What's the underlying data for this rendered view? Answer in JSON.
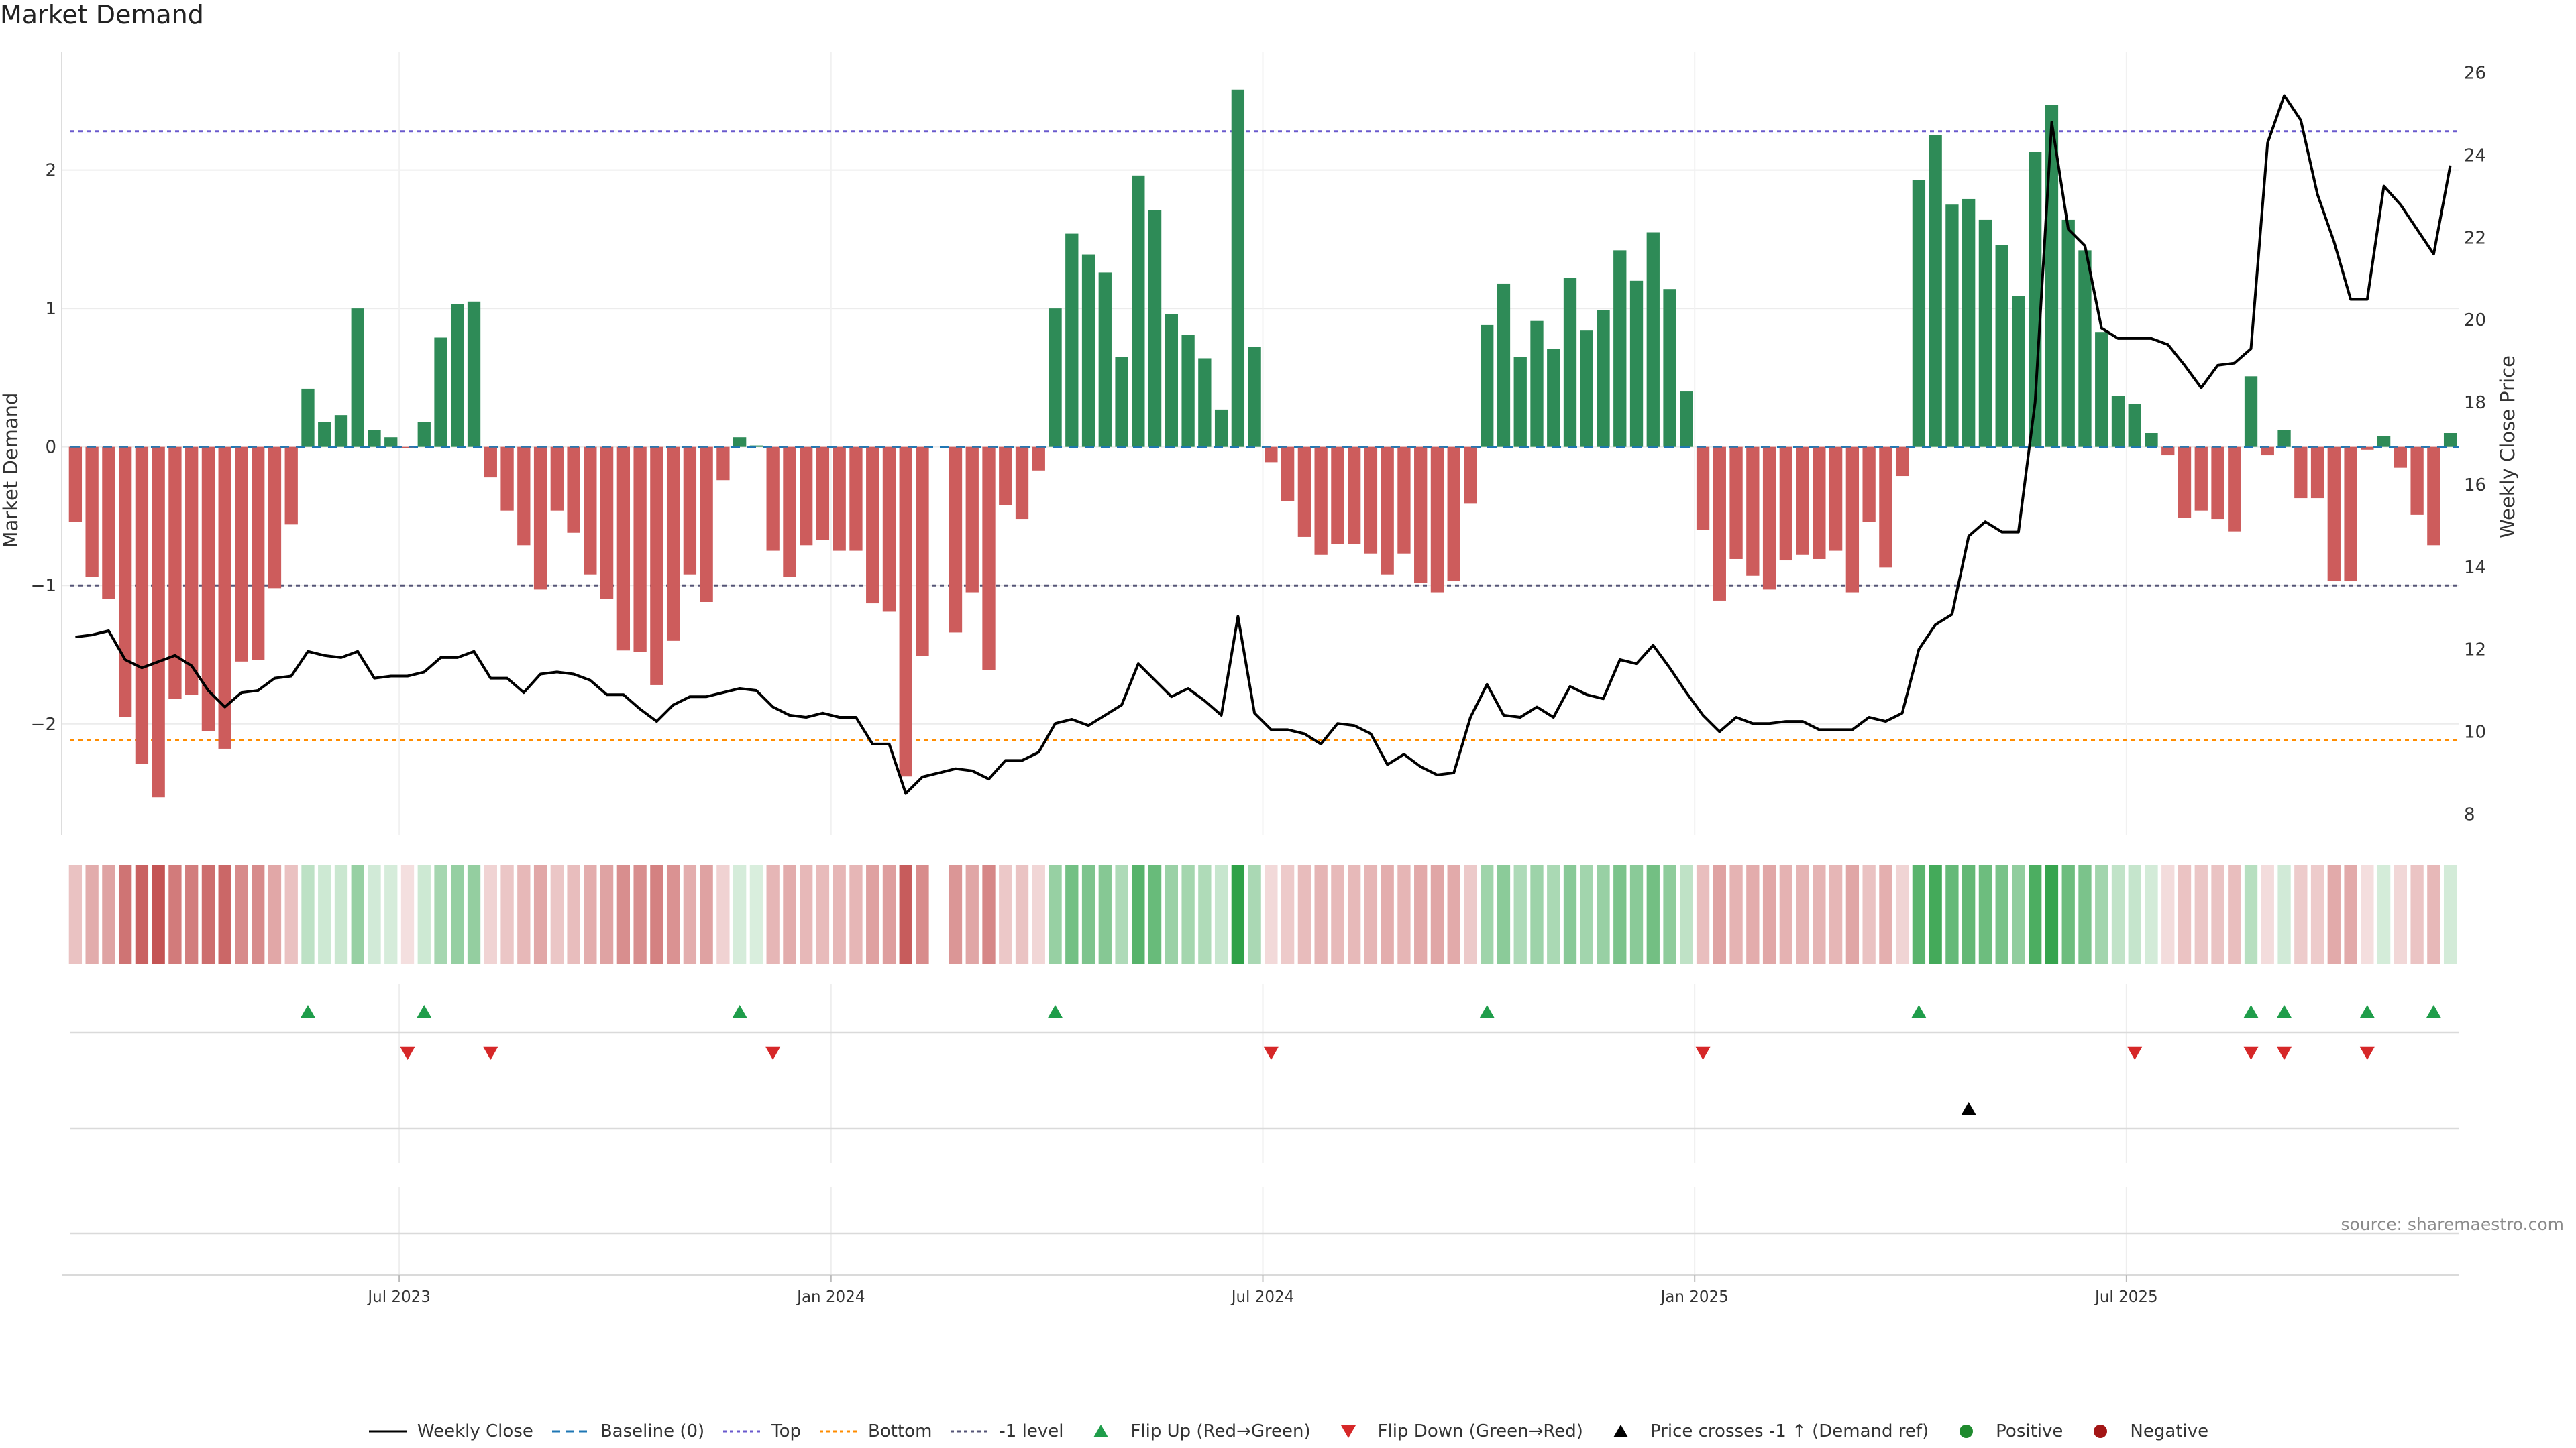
{
  "title": "Market Demand",
  "source": "source: sharemaestro.com",
  "colors": {
    "positive": "#2e8b57",
    "negative": "#cd5c5c",
    "close": "#000000",
    "top": "#6a5acd",
    "bottom": "#ff8c00",
    "minus1": "#555577",
    "flip_up": "#1f9d4a",
    "flip_down": "#d62728"
  },
  "legend": [
    {
      "label": "Weekly Close",
      "kind": "line-solid",
      "color": "#000000"
    },
    {
      "label": "Baseline (0)",
      "kind": "line-dashed",
      "color": "#1f77b4"
    },
    {
      "label": "Top",
      "kind": "line-dotted",
      "color": "#6a5acd"
    },
    {
      "label": "Bottom",
      "kind": "line-dotted",
      "color": "#ff8c00"
    },
    {
      "label": "-1 level",
      "kind": "line-dotted",
      "color": "#555577"
    },
    {
      "label": "Flip Up (Red→Green)",
      "kind": "tri-up",
      "color": "#1f9d4a"
    },
    {
      "label": "Flip Down (Green→Red)",
      "kind": "tri-down",
      "color": "#d62728"
    },
    {
      "label": "Price crosses -1 ↑ (Demand ref)",
      "kind": "tri-up",
      "color": "#000000"
    },
    {
      "label": "Positive",
      "kind": "dot",
      "color": "#1f8a2e"
    },
    {
      "label": "Negative",
      "kind": "dot",
      "color": "#a31515"
    }
  ],
  "chart_data": {
    "type": "bar",
    "title": "Market Demand",
    "ylabel_left": "Market Demand",
    "ylabel_right": "Weekly Close Price",
    "y_left_ticks": [
      "−2",
      "−1",
      "0",
      "1",
      "2"
    ],
    "y_left_tick_values": [
      -2,
      -1,
      0,
      1,
      2
    ],
    "y_right_ticks": [
      "8",
      "10",
      "12",
      "14",
      "16",
      "18",
      "20",
      "22",
      "24",
      "26"
    ],
    "y_right_tick_values": [
      8,
      10,
      12,
      14,
      16,
      18,
      20,
      22,
      24,
      26
    ],
    "ylim_left": [
      -2.8,
      2.85
    ],
    "ylim_right": [
      7.5,
      26.5
    ],
    "x_ticks": [
      "Jul 2023",
      "Jan 2024",
      "Jul 2024",
      "Jan 2025",
      "Jul 2025"
    ],
    "x_tick_positions": [
      20,
      46,
      72,
      98,
      124
    ],
    "reference_lines": {
      "top": 2.28,
      "bottom": -2.12,
      "minus_one": -1,
      "baseline": 0
    },
    "demand": [
      -0.54,
      -0.94,
      -1.1,
      -1.95,
      -2.29,
      -2.53,
      -1.82,
      -1.79,
      -2.05,
      -2.18,
      -1.55,
      -1.54,
      -1.02,
      -0.56,
      0.42,
      0.18,
      0.23,
      1.0,
      0.12,
      0.07,
      -0.01,
      0.18,
      0.79,
      1.03,
      1.05,
      -0.22,
      -0.46,
      -0.71,
      -1.03,
      -0.46,
      -0.62,
      -0.92,
      -1.1,
      -1.47,
      -1.48,
      -1.72,
      -1.4,
      -0.92,
      -1.12,
      -0.24,
      0.07,
      0.01,
      -0.75,
      -0.94,
      -0.71,
      -0.67,
      -0.75,
      -0.75,
      -1.13,
      -1.19,
      -2.38,
      -1.51,
      0.0,
      -1.34,
      -1.05,
      -1.61,
      -0.42,
      -0.52,
      -0.17,
      1.0,
      1.54,
      1.39,
      1.26,
      0.65,
      1.96,
      1.71,
      0.96,
      0.81,
      0.64,
      0.27,
      2.58,
      0.72,
      -0.11,
      -0.39,
      -0.65,
      -0.78,
      -0.7,
      -0.7,
      -0.77,
      -0.92,
      -0.77,
      -0.98,
      -1.05,
      -0.97,
      -0.41,
      0.88,
      1.18,
      0.65,
      0.91,
      0.71,
      1.22,
      0.84,
      0.99,
      1.42,
      1.2,
      1.55,
      1.14,
      0.4,
      -0.6,
      -1.11,
      -0.81,
      -0.93,
      -1.03,
      -0.82,
      -0.78,
      -0.81,
      -0.75,
      -1.05,
      -0.54,
      -0.87,
      -0.21,
      1.93,
      2.25,
      1.75,
      1.79,
      1.64,
      1.46,
      1.09,
      2.13,
      2.47,
      1.64,
      1.42,
      0.83,
      0.37,
      0.31,
      0.1,
      -0.06,
      -0.51,
      -0.46,
      -0.52,
      -0.61,
      0.51,
      -0.06,
      0.12,
      -0.37,
      -0.37,
      -0.97,
      -0.97,
      -0.02,
      0.08,
      -0.15,
      -0.49,
      -0.71,
      0.1
    ],
    "weekly_close": [
      12.3,
      12.35,
      12.45,
      11.75,
      11.55,
      11.7,
      11.85,
      11.6,
      11.0,
      10.6,
      10.95,
      11.0,
      11.3,
      11.35,
      11.95,
      11.85,
      11.8,
      11.95,
      11.3,
      11.35,
      11.35,
      11.45,
      11.8,
      11.8,
      11.95,
      11.3,
      11.3,
      10.95,
      11.4,
      11.45,
      11.4,
      11.25,
      10.9,
      10.9,
      10.55,
      10.25,
      10.65,
      10.85,
      10.85,
      10.95,
      11.05,
      11.0,
      10.6,
      10.4,
      10.35,
      10.45,
      10.35,
      10.35,
      9.7,
      9.7,
      8.5,
      8.9,
      9.0,
      9.1,
      9.05,
      8.85,
      9.3,
      9.3,
      9.5,
      10.2,
      10.3,
      10.15,
      10.4,
      10.65,
      11.65,
      11.25,
      10.85,
      11.05,
      10.75,
      10.4,
      12.8,
      10.45,
      10.05,
      10.05,
      9.95,
      9.7,
      10.2,
      10.15,
      9.95,
      9.2,
      9.45,
      9.15,
      8.95,
      9.0,
      10.35,
      11.15,
      10.4,
      10.35,
      10.6,
      10.35,
      11.1,
      10.9,
      10.8,
      11.75,
      11.65,
      12.1,
      11.55,
      10.95,
      10.4,
      10.0,
      10.35,
      10.2,
      10.2,
      10.25,
      10.25,
      10.05,
      10.05,
      10.05,
      10.35,
      10.25,
      10.45,
      12.0,
      12.6,
      12.85,
      14.75,
      15.1,
      14.85,
      14.85,
      18.0,
      24.8,
      22.2,
      21.8,
      19.8,
      19.55,
      19.55,
      19.55,
      19.4,
      18.9,
      18.35,
      18.9,
      18.95,
      19.3,
      24.3,
      25.45,
      24.85,
      23.05,
      21.9,
      20.5,
      20.5,
      23.25,
      22.8,
      22.2,
      21.6,
      23.75
    ],
    "flip_up_weeks": [
      14,
      21,
      40,
      59,
      85,
      111,
      131,
      133,
      138,
      142
    ],
    "flip_down_weeks": [
      20,
      25,
      42,
      72,
      98,
      124,
      131,
      133,
      138
    ],
    "price_cross_weeks": [
      114
    ],
    "sentiment_strip_colors_note": "bar intensity follows demand magnitude; green positive, red negative",
    "n_weeks": 144
  }
}
